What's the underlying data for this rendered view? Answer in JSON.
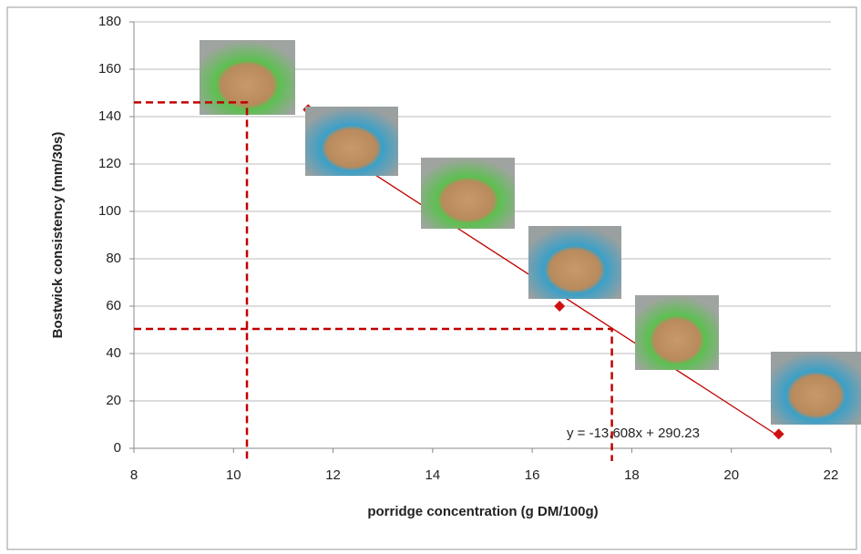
{
  "chart_data": {
    "type": "scatter",
    "x_label": "porridge concentration (g DM/100g)",
    "y_label": "Bostwick consistency (mm/30s)",
    "xlim": [
      8,
      22
    ],
    "xticks": [
      8,
      10,
      12,
      14,
      16,
      18,
      20,
      22
    ],
    "ylim": [
      0,
      180
    ],
    "yticks": [
      0,
      20,
      40,
      60,
      80,
      100,
      120,
      140,
      160,
      180
    ],
    "grid": true,
    "series": [
      {
        "color": "#d01010",
        "x": [
          11.5,
          16.55,
          20.95
        ],
        "values": [
          143,
          60,
          6
        ]
      }
    ],
    "trendline": {
      "slope": -13.608,
      "intercept": 290.23,
      "color": "#c00000",
      "label": "y = -13.608x + 290.23"
    },
    "guides": [
      {
        "x": 10.27,
        "y": 146
      },
      {
        "x": 17.6,
        "y": 50.4
      }
    ]
  }
}
